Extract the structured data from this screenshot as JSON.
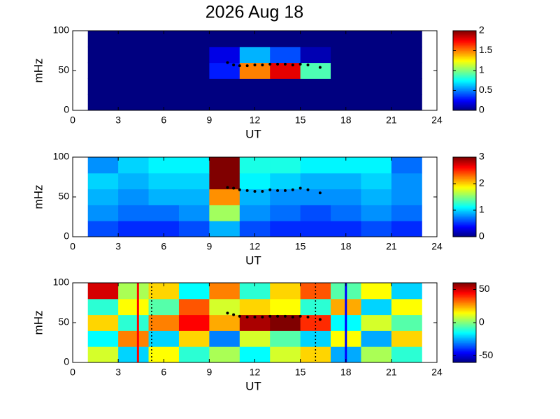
{
  "chart_data": [
    {
      "type": "heatmap",
      "title": "2026 Aug 18",
      "xlabel": "UT",
      "ylabel": "mHz",
      "xlim": [
        0,
        24
      ],
      "xticks": [
        0,
        3,
        6,
        9,
        12,
        15,
        18,
        21,
        24
      ],
      "ylim": [
        0,
        100
      ],
      "yticks": [
        0,
        50,
        100
      ],
      "x_edges": [
        1,
        3,
        5,
        7,
        9,
        11,
        13,
        15,
        17,
        19,
        21,
        23
      ],
      "y_edges": [
        0,
        20,
        40,
        60,
        80,
        100
      ],
      "z": [
        [
          0,
          0,
          0,
          0,
          0,
          0,
          0,
          0,
          0,
          0,
          0
        ],
        [
          0,
          0,
          0,
          0,
          0,
          0,
          0,
          0,
          0,
          0,
          0
        ],
        [
          0,
          0,
          0,
          0,
          0.3,
          1.5,
          1.8,
          0.9,
          0,
          0,
          0
        ],
        [
          0,
          0,
          0,
          0,
          0.2,
          0.6,
          0.4,
          0.1,
          0,
          0,
          0
        ],
        [
          0,
          0,
          0,
          0,
          0,
          0,
          0,
          0,
          0,
          0,
          0
        ]
      ],
      "clim": [
        0,
        2
      ],
      "cticks": [
        0,
        0.5,
        1,
        1.5,
        2
      ],
      "points": {
        "x": [
          10.2,
          10.6,
          11,
          11.5,
          12,
          12.5,
          13,
          13.5,
          14,
          14.5,
          15,
          15.5,
          16.3
        ],
        "y": [
          60,
          57,
          56,
          56,
          57,
          57,
          58,
          58,
          58,
          57,
          58,
          57,
          54
        ],
        "color": "#000000"
      }
    },
    {
      "type": "heatmap",
      "xlabel": "UT",
      "ylabel": "mHz",
      "xlim": [
        0,
        24
      ],
      "xticks": [
        0,
        3,
        6,
        9,
        12,
        15,
        18,
        21,
        24
      ],
      "ylim": [
        0,
        100
      ],
      "yticks": [
        0,
        50,
        100
      ],
      "x_edges": [
        1,
        3,
        5,
        7,
        9,
        11,
        13,
        15,
        17,
        19,
        21,
        23
      ],
      "y_edges": [
        0,
        20,
        40,
        60,
        80,
        100
      ],
      "z": [
        [
          0.6,
          0.5,
          0.5,
          0.6,
          0.9,
          0.6,
          0.5,
          0.5,
          0.5,
          0.6,
          0.5
        ],
        [
          0.8,
          0.7,
          0.7,
          0.8,
          1.6,
          0.8,
          0.7,
          0.6,
          0.7,
          0.8,
          0.7
        ],
        [
          0.9,
          0.8,
          0.9,
          0.9,
          2.2,
          0.9,
          0.8,
          0.8,
          0.8,
          0.9,
          0.8
        ],
        [
          1.0,
          0.9,
          1.0,
          1.0,
          3.0,
          1.1,
          1.0,
          0.9,
          0.9,
          1.0,
          0.8
        ],
        [
          0.8,
          1.0,
          1.1,
          1.1,
          3.0,
          1.2,
          1.2,
          1.1,
          1.1,
          1.1,
          0.7
        ]
      ],
      "clim": [
        0,
        3
      ],
      "cticks": [
        0,
        1,
        2,
        3
      ],
      "points": {
        "x": [
          10.2,
          10.6,
          11,
          11.5,
          12,
          12.5,
          13,
          13.5,
          14,
          14.5,
          15,
          15.5,
          16.3
        ],
        "y": [
          62,
          61,
          59,
          58,
          57,
          57,
          59,
          58,
          58,
          59,
          61,
          59,
          55
        ],
        "color": "#000000"
      }
    },
    {
      "type": "heatmap",
      "xlabel": "UT",
      "ylabel": "mHz",
      "xlim": [
        0,
        24
      ],
      "xticks": [
        0,
        3,
        6,
        9,
        12,
        15,
        18,
        21,
        24
      ],
      "ylim": [
        0,
        100
      ],
      "yticks": [
        0,
        50,
        100
      ],
      "x_edges": [
        1,
        3,
        5,
        7,
        9,
        11,
        13,
        15,
        17,
        19,
        21,
        23
      ],
      "y_edges": [
        0,
        20,
        40,
        60,
        80,
        100
      ],
      "z": [
        [
          10,
          -20,
          15,
          -10,
          5,
          -15,
          10,
          20,
          -25,
          5,
          -10
        ],
        [
          -15,
          30,
          -20,
          20,
          -30,
          10,
          -5,
          -20,
          15,
          -25,
          20
        ],
        [
          20,
          -10,
          30,
          45,
          25,
          55,
          60,
          40,
          -15,
          10,
          -5
        ],
        [
          -10,
          15,
          -5,
          35,
          10,
          20,
          15,
          -10,
          25,
          -20,
          15
        ],
        [
          50,
          5,
          20,
          -15,
          30,
          -10,
          20,
          35,
          -5,
          15,
          -20
        ]
      ],
      "clim": [
        -60,
        60
      ],
      "cticks": [
        -50,
        0,
        50
      ],
      "points": {
        "x": [
          10.2,
          10.6,
          11,
          11.5,
          12,
          12.5,
          13,
          13.5,
          14,
          14.5,
          15,
          15.5,
          16.3
        ],
        "y": [
          62,
          60,
          58,
          57,
          57,
          57,
          58,
          58,
          58,
          57,
          58,
          57,
          54
        ],
        "color": "#000000"
      },
      "vlines": [
        {
          "x": 4.3,
          "color": "#ff0000",
          "style": "solid"
        },
        {
          "x": 5.2,
          "color": "#000000",
          "style": "dotted"
        },
        {
          "x": 16.0,
          "color": "#000000",
          "style": "dotted"
        },
        {
          "x": 18.0,
          "color": "#0000ff",
          "style": "solid"
        }
      ]
    }
  ]
}
